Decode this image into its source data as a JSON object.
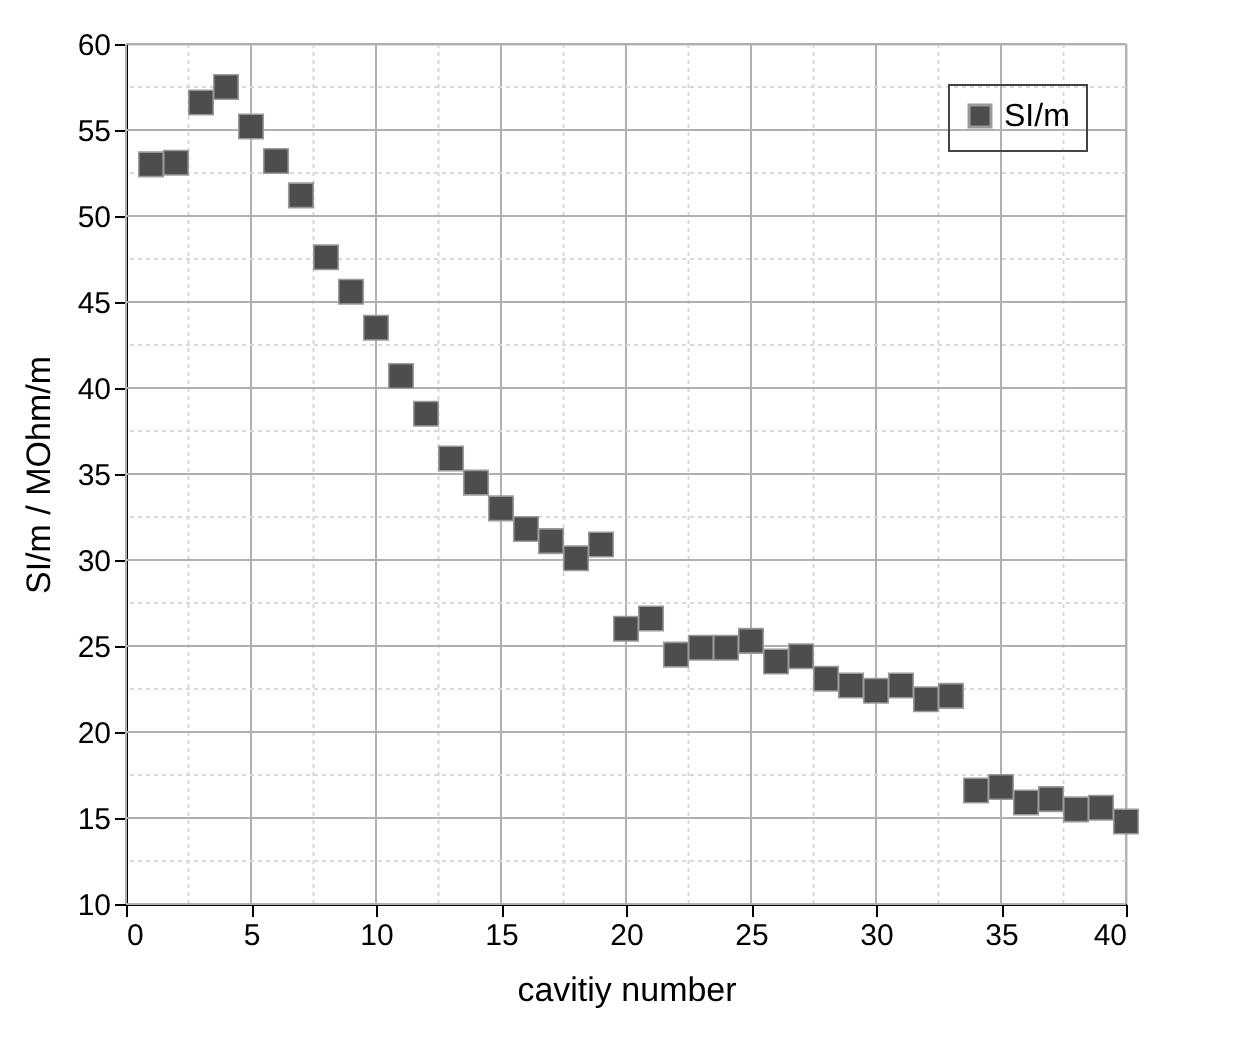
{
  "chart_data": {
    "type": "scatter",
    "xlabel": "cavitiy number",
    "ylabel": "SI/m / MOhm/m",
    "x": [
      1,
      2,
      3,
      4,
      5,
      6,
      7,
      8,
      9,
      10,
      11,
      12,
      13,
      14,
      15,
      16,
      17,
      18,
      19,
      20,
      21,
      22,
      23,
      24,
      25,
      26,
      27,
      28,
      29,
      30,
      31,
      32,
      33,
      34,
      35,
      36,
      37,
      38,
      39,
      40
    ],
    "series": [
      {
        "name": "SI/m",
        "color": "#4d4d4d",
        "values": [
          53.0,
          53.1,
          56.6,
          57.5,
          55.2,
          53.2,
          51.2,
          47.6,
          45.6,
          43.5,
          40.7,
          38.5,
          35.9,
          34.5,
          33.0,
          31.8,
          31.1,
          30.1,
          30.9,
          26.0,
          26.6,
          24.5,
          24.9,
          24.9,
          25.3,
          24.1,
          24.4,
          23.1,
          22.7,
          22.4,
          22.7,
          21.9,
          22.1,
          16.6,
          16.8,
          15.9,
          16.1,
          15.5,
          15.6,
          14.8
        ]
      }
    ],
    "xlim": [
      0,
      40
    ],
    "ylim": [
      10,
      60
    ],
    "xticks": [
      0,
      {
        "value": 2.5,
        "label": null
      },
      5,
      {
        "value": 7.5,
        "label": null
      },
      10,
      {
        "value": 12.5,
        "label": null
      },
      15,
      {
        "value": 17.5,
        "label": null
      },
      20,
      {
        "value": 22.5,
        "label": null
      },
      25,
      {
        "value": 27.5,
        "label": null
      },
      30,
      {
        "value": 32.5,
        "label": null
      },
      35,
      {
        "value": 37.5,
        "label": null
      },
      40
    ],
    "yticks": [
      10,
      {
        "value": 12.5,
        "label": null
      },
      15,
      {
        "value": 17.5,
        "label": null
      },
      20,
      {
        "value": 22.5,
        "label": null
      },
      25,
      {
        "value": 27.5,
        "label": null
      },
      30,
      {
        "value": 32.5,
        "label": null
      },
      35,
      {
        "value": 37.5,
        "label": null
      },
      40,
      {
        "value": 42.5,
        "label": null
      },
      45,
      {
        "value": 47.5,
        "label": null
      },
      50,
      {
        "value": 52.5,
        "label": null
      },
      55,
      {
        "value": 57.5,
        "label": null
      },
      60
    ],
    "grid": true,
    "legend": "top right",
    "marker": "square"
  }
}
